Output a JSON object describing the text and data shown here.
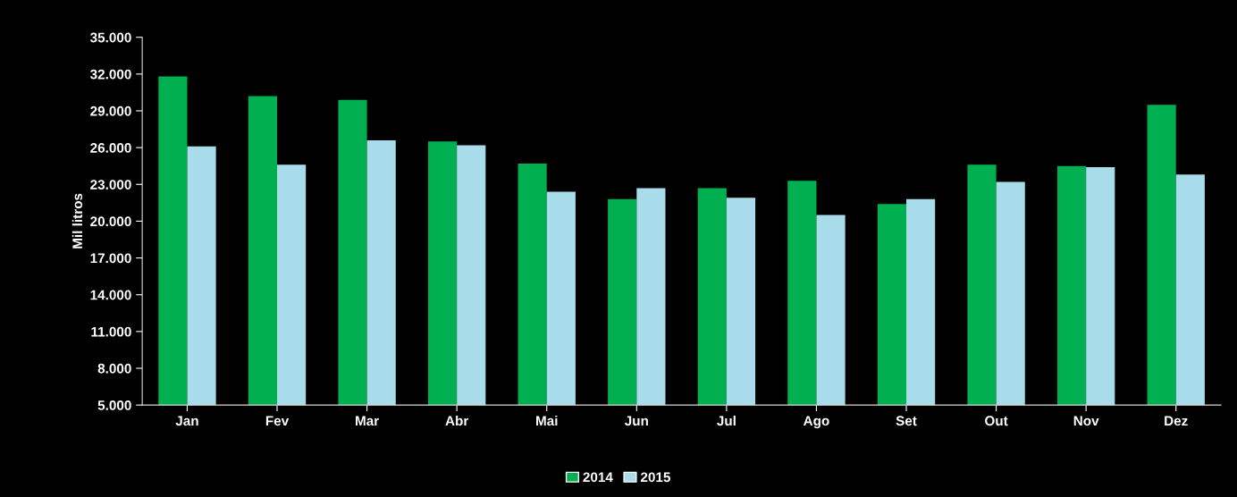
{
  "chart_data": {
    "type": "bar",
    "ylabel": "Mil litros",
    "categories": [
      "Jan",
      "Fev",
      "Mar",
      "Abr",
      "Mai",
      "Jun",
      "Jul",
      "Ago",
      "Set",
      "Out",
      "Nov",
      "Dez"
    ],
    "series": [
      {
        "name": "2014",
        "color": "#00b050",
        "values": [
          31800,
          30200,
          29900,
          26500,
          24700,
          21800,
          22700,
          23300,
          21400,
          24600,
          24500,
          29500
        ]
      },
      {
        "name": "2015",
        "color": "#a9dcea",
        "values": [
          26100,
          24600,
          26600,
          26200,
          22400,
          22700,
          21900,
          20500,
          21800,
          23200,
          24400,
          23800
        ]
      }
    ],
    "ylim": [
      5000,
      35000
    ],
    "yticks": [
      {
        "value": 5000,
        "label": "5.000"
      },
      {
        "value": 8000,
        "label": "8.000"
      },
      {
        "value": 11000,
        "label": "11.000"
      },
      {
        "value": 14000,
        "label": "14.000"
      },
      {
        "value": 17000,
        "label": "17.000"
      },
      {
        "value": 20000,
        "label": "20.000"
      },
      {
        "value": 23000,
        "label": "23.000"
      },
      {
        "value": 26000,
        "label": "26.000"
      },
      {
        "value": 29000,
        "label": "29.000"
      },
      {
        "value": 32000,
        "label": "32.000"
      },
      {
        "value": 35000,
        "label": "35.000"
      }
    ],
    "legend": "bottom",
    "grid": false
  }
}
